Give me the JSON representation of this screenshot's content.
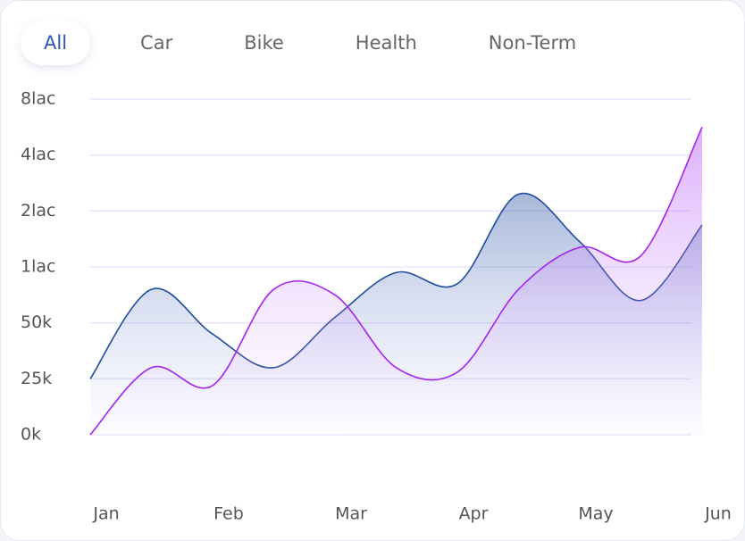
{
  "tabs": [
    "All",
    "Car",
    "Bike",
    "Health",
    "Non-Term"
  ],
  "chart_data": {
    "type": "line",
    "categories": [
      "Jan",
      null,
      "Feb",
      null,
      "Mar",
      null,
      "Apr",
      null,
      "May",
      null,
      "Jun"
    ],
    "series": [
      {
        "color": "#1f4c9c",
        "values": [
          25000,
          80000,
          45000,
          30000,
          55000,
          95000,
          85000,
          260000,
          145000,
          70000,
          175000
        ]
      },
      {
        "color": "#a324ee",
        "values": [
          0,
          30000,
          22000,
          80000,
          75000,
          30000,
          28000,
          80000,
          135000,
          120000,
          600000
        ]
      }
    ],
    "ylim": [
      0,
      800000
    ],
    "yticks": [
      {
        "value": 0,
        "label": "0k"
      },
      {
        "value": 25000,
        "label": "25k"
      },
      {
        "value": 50000,
        "label": "50k"
      },
      {
        "value": 100000,
        "label": "1lac"
      },
      {
        "value": 200000,
        "label": "2lac"
      },
      {
        "value": 400000,
        "label": "4lac"
      },
      {
        "value": 800000,
        "label": "8lac"
      }
    ],
    "grid": true
  }
}
